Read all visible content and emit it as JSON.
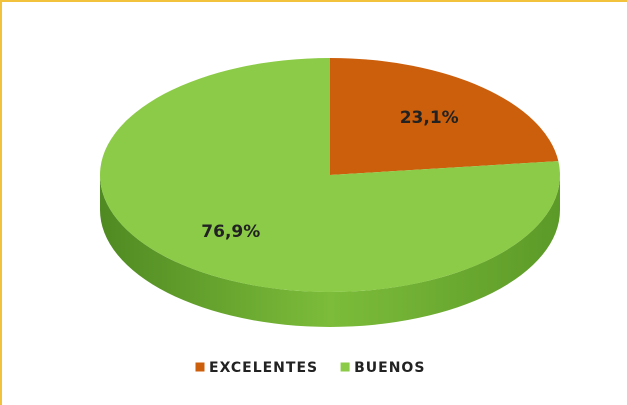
{
  "chart_data": {
    "type": "pie",
    "categories": [
      "EXCELENTES",
      "BUENOS"
    ],
    "values": [
      23.1,
      76.9
    ],
    "value_labels": [
      "23,1%",
      "76,9%"
    ],
    "colors": [
      "#cc5f0c",
      "#8ccb48"
    ],
    "legend": "bottom"
  }
}
